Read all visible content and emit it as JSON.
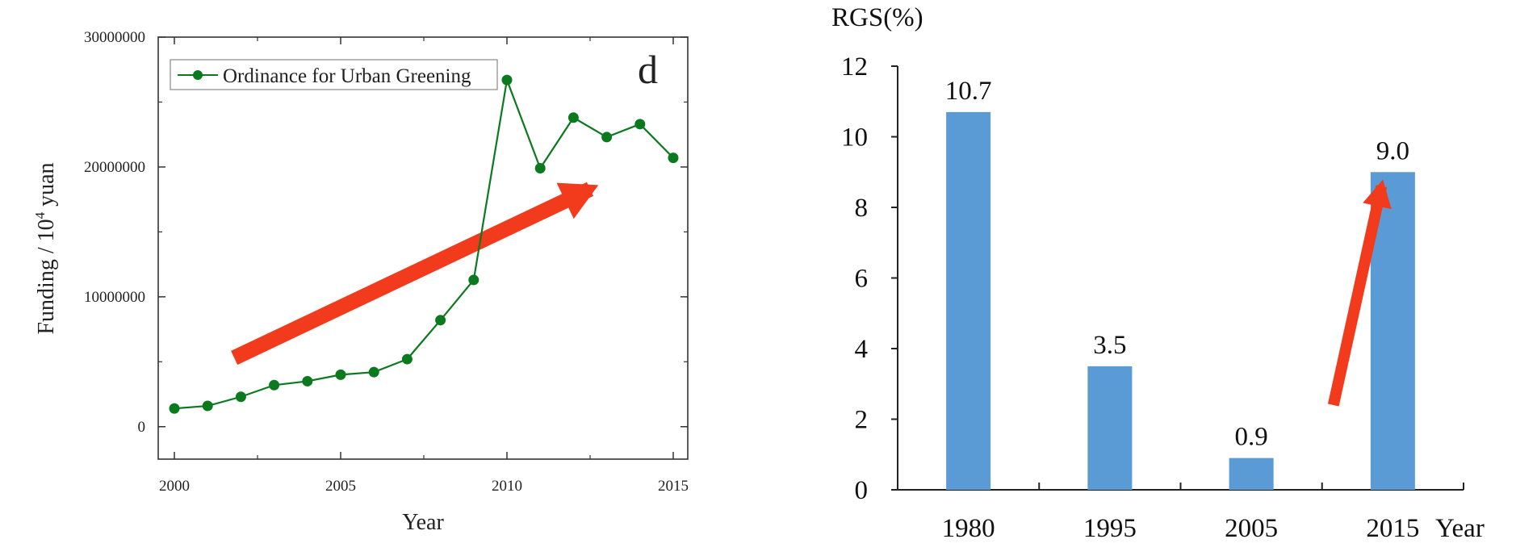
{
  "chart_data": [
    {
      "type": "line",
      "panel_label": "d",
      "xlabel": "Year",
      "ylabel_main": "Funding / 10",
      "ylabel_sup": "4",
      "ylabel_tail": " yuan",
      "xlim": [
        2000,
        2015
      ],
      "ylim": [
        -2500000,
        30000000
      ],
      "xticks": [
        "2000",
        "2005",
        "2010",
        "2015"
      ],
      "yticks": [
        "0",
        "10000000",
        "20000000",
        "30000000"
      ],
      "legend_position": "top-left",
      "grid": false,
      "series": [
        {
          "name": "Ordinance for Urban Greening",
          "color": "#0b7a1e",
          "x": [
            2000,
            2001,
            2002,
            2003,
            2004,
            2005,
            2006,
            2007,
            2008,
            2009,
            2010,
            2011,
            2012,
            2013,
            2014,
            2015
          ],
          "y": [
            1400000,
            1600000,
            2300000,
            3200000,
            3500000,
            4000000,
            4200000,
            5200000,
            8200000,
            11300000,
            26700000,
            19900000,
            23800000,
            22300000,
            23300000,
            20700000
          ]
        }
      ],
      "annotations": [
        {
          "type": "arrow",
          "color": "#f23a1c",
          "direction": "up-right",
          "from": [
            2001.8,
            5300000
          ],
          "to": [
            2012.5,
            18300000
          ]
        }
      ]
    },
    {
      "type": "bar",
      "ylabel": "RGS(%)",
      "xlabel": "Year",
      "categories": [
        "1980",
        "1995",
        "2005",
        "2015"
      ],
      "values": [
        10.7,
        3.5,
        0.9,
        9.0
      ],
      "data_labels": [
        "10.7",
        "3.5",
        "0.9",
        "9.0"
      ],
      "ylim": [
        0,
        12
      ],
      "yticks": [
        "0",
        "2",
        "4",
        "6",
        "8",
        "10",
        "12"
      ],
      "bar_color": "#5b9bd5",
      "grid": false,
      "annotations": [
        {
          "type": "arrow",
          "color": "#f23a1c",
          "direction": "up-right",
          "from": [
            2.58,
            2.4
          ],
          "to": [
            2.92,
            8.6
          ]
        }
      ]
    }
  ]
}
